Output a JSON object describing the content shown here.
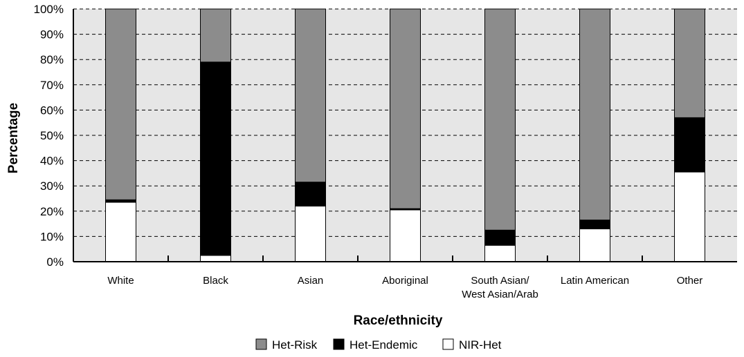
{
  "chart_data": {
    "type": "bar",
    "stacked": true,
    "title": "",
    "xlabel": "Race/ethnicity",
    "ylabel": "Percentage",
    "ylim": [
      0,
      100
    ],
    "y_ticks": [
      "0%",
      "10%",
      "20%",
      "30%",
      "40%",
      "50%",
      "60%",
      "70%",
      "80%",
      "90%",
      "100%"
    ],
    "y_tick_values": [
      0,
      10,
      20,
      30,
      40,
      50,
      60,
      70,
      80,
      90,
      100
    ],
    "categories": [
      [
        "White"
      ],
      [
        "Black"
      ],
      [
        "Asian"
      ],
      [
        "Aboriginal"
      ],
      [
        "South Asian/",
        "West Asian/Arab"
      ],
      [
        "Latin American"
      ],
      [
        "Other"
      ]
    ],
    "series": [
      {
        "name": "NIR-Het",
        "color": "#ffffff",
        "values": [
          23.5,
          2.5,
          22,
          20.5,
          6.5,
          13,
          35.5
        ]
      },
      {
        "name": "Het-Endemic",
        "color": "#000000",
        "values": [
          1,
          76.5,
          9.5,
          0.5,
          6,
          3.5,
          21.5
        ]
      },
      {
        "name": "Het-Risk",
        "color": "#8c8c8c",
        "values": [
          75.5,
          21,
          68.5,
          79,
          87.5,
          83.5,
          43
        ]
      }
    ],
    "legend_order": [
      "Het-Risk",
      "Het-Endemic",
      "NIR-Het"
    ],
    "legend_position": "bottom",
    "grid": true,
    "plot_background": "#e6e6e6"
  }
}
